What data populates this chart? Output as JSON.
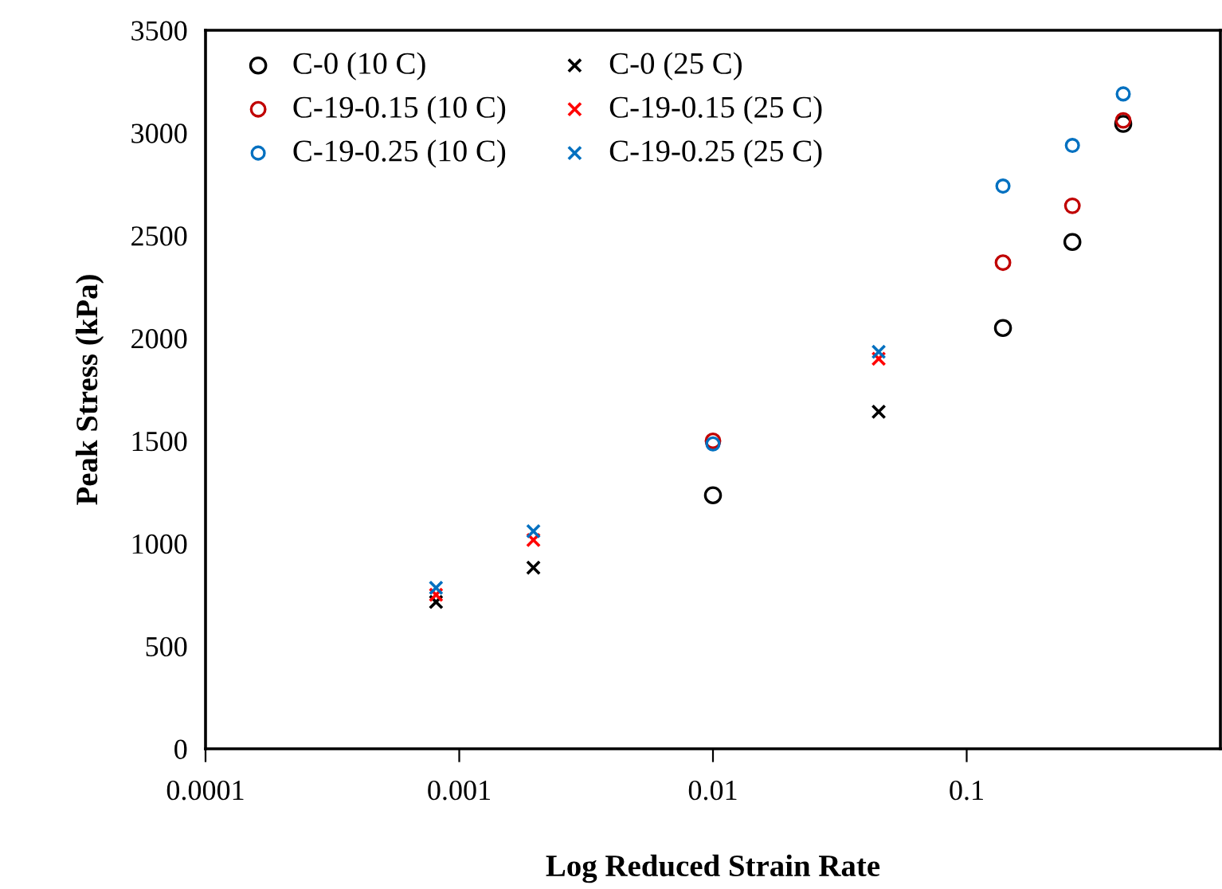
{
  "chart_data": {
    "type": "scatter",
    "xlabel": "Log Reduced Strain Rate",
    "ylabel": "Peak Stress (kPa)",
    "log": "x",
    "xlim": [
      0.0001,
      1
    ],
    "xticks": [
      0.0001,
      0.001,
      0.01,
      0.1
    ],
    "ylim": [
      0,
      3500
    ],
    "yticks": [
      0,
      500,
      1000,
      1500,
      2000,
      2500,
      3000,
      3500
    ],
    "grid": false,
    "legend": "top left",
    "series": [
      {
        "name": "C-0 (10 C)",
        "color": "#000000",
        "marker": "circle",
        "x": [
          0.01,
          0.139,
          0.261,
          0.414
        ],
        "values": [
          1235,
          2050,
          2469,
          3044
        ]
      },
      {
        "name": "C-0 (25 C)",
        "color": "#000000",
        "marker": "cross",
        "x": [
          0.00081,
          0.00196,
          0.045
        ],
        "values": [
          715,
          882,
          1642
        ]
      },
      {
        "name": "C-19-0.15 (10 C)",
        "color": "#c00000",
        "marker": "circle",
        "x": [
          0.01,
          0.139,
          0.261,
          0.414
        ],
        "values": [
          1500,
          2368,
          2645,
          3061
        ]
      },
      {
        "name": "C-19-0.15 (25 C)",
        "color": "#ff0000",
        "marker": "cross",
        "x": [
          0.00081,
          0.00196,
          0.045
        ],
        "values": [
          750,
          1017,
          1900
        ]
      },
      {
        "name": "C-19-0.25 (10 C)",
        "color": "#0070c0",
        "marker": "circle",
        "x": [
          0.01,
          0.139,
          0.261,
          0.414
        ],
        "values": [
          1485,
          2741,
          2939,
          3190
        ]
      },
      {
        "name": "C-19-0.25 (25 C)",
        "color": "#0070c0",
        "marker": "cross",
        "x": [
          0.00081,
          0.00196,
          0.045
        ],
        "values": [
          784,
          1060,
          1934
        ]
      }
    ]
  }
}
